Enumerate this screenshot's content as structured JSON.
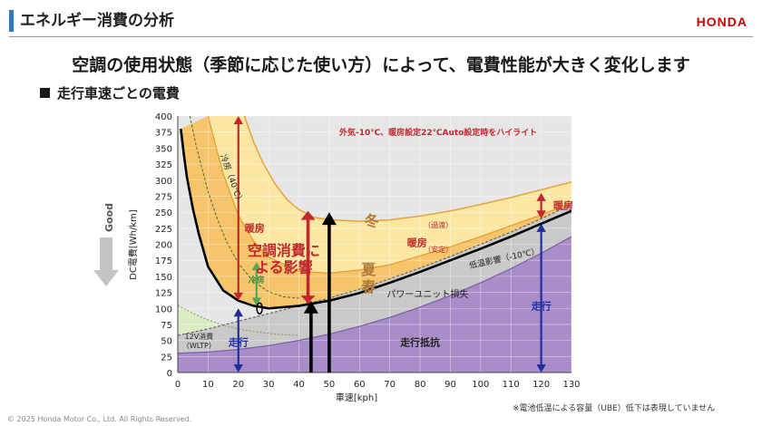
{
  "header": {
    "title": "エネルギー消費の分析",
    "brand": "HONDA",
    "headline": "空調の使用状態（季節に応じた使い方）によって、電費性能が大きく変化します",
    "section": "走行車速ごとの電費"
  },
  "footer": {
    "copyright": "© 2025 Honda Motor Co., Ltd. All Rights Reserved.",
    "footnote": "※電池低温による容量（UBE）低下は表現していません"
  },
  "colors": {
    "purple": "#a98dc9",
    "gray": "#c9c9c9",
    "orange": "#f6c46a",
    "yellow": "#fbe7a3",
    "green": "#d9ecc4",
    "red": "#c1272d",
    "blue": "#1f2e9c",
    "accent": "#2b79c2"
  },
  "chart_data": {
    "type": "area",
    "xlabel": "車速[kph]",
    "ylabel": "DC電費[Wh/km]",
    "xlim": [
      0,
      130
    ],
    "ylim": [
      0,
      400
    ],
    "xticks": [
      0,
      10,
      20,
      30,
      40,
      50,
      60,
      70,
      80,
      90,
      100,
      110,
      120,
      130
    ],
    "yticks": [
      0,
      25,
      50,
      75,
      100,
      125,
      150,
      175,
      200,
      225,
      250,
      275,
      300,
      325,
      350,
      375,
      400
    ],
    "good_label": "Good",
    "series": [
      {
        "name": "走行抵抗",
        "x": [
          0,
          10,
          20,
          30,
          40,
          50,
          60,
          70,
          80,
          90,
          100,
          110,
          120,
          130
        ],
        "values": [
          30,
          32,
          36,
          42,
          50,
          60,
          72,
          86,
          102,
          120,
          140,
          162,
          186,
          212
        ]
      },
      {
        "name": "パワーユニット損失",
        "x": [
          0,
          10,
          20,
          30,
          40,
          50,
          60,
          70,
          80,
          90,
          100,
          110,
          120,
          130
        ],
        "values": [
          58,
          68,
          80,
          92,
          104,
          116,
          130,
          146,
          163,
          181,
          200,
          219,
          240,
          262
        ]
      },
      {
        "name": "低温影響（-10℃）",
        "x": [
          1,
          2,
          3,
          5,
          7,
          10,
          15,
          20,
          25,
          30,
          40,
          50,
          60,
          70,
          80,
          90,
          100,
          110,
          120,
          130
        ],
        "values": [
          380,
          340,
          305,
          255,
          215,
          165,
          128,
          112,
          104,
          100,
          104,
          112,
          124,
          140,
          157,
          175,
          193,
          212,
          232,
          252
        ]
      },
      {
        "name": "冷房（40℃）",
        "x": [
          4,
          6,
          8,
          10,
          13,
          16,
          20,
          25,
          30,
          35,
          40
        ],
        "values": [
          400,
          355,
          318,
          282,
          240,
          205,
          170,
          142,
          126,
          118,
          116
        ]
      },
      {
        "name": "夏・春 12V",
        "x": [
          0,
          5,
          10,
          15,
          20,
          25,
          30,
          35,
          40
        ],
        "values": [
          105,
          92,
          82,
          74,
          68,
          64,
          61,
          59,
          58
        ]
      },
      {
        "name": "暖房（安定）",
        "x": [
          10,
          13,
          15,
          20,
          25,
          30,
          40,
          50,
          60,
          70,
          80,
          90,
          100,
          110,
          120,
          130
        ],
        "values": [
          400,
          345,
          310,
          245,
          205,
          180,
          158,
          155,
          160,
          168,
          182,
          196,
          212,
          229,
          246,
          264
        ]
      },
      {
        "name": "暖房（過渡）",
        "x": [
          22,
          25,
          28,
          32,
          36,
          40,
          45,
          50,
          60,
          70,
          80,
          90,
          100,
          110,
          120,
          130
        ],
        "values": [
          400,
          360,
          328,
          295,
          270,
          254,
          242,
          238,
          236,
          238,
          244,
          252,
          262,
          273,
          285,
          297
        ]
      }
    ],
    "annotations": {
      "highlight": "外気-10℃、暖房設定22℃Auto設定時をハイライト",
      "cooling": "冷房（40℃）",
      "heating": "暖房",
      "heating_right": "暖房",
      "transient": "（過渡）",
      "stable": "（安定）",
      "winter": "冬",
      "summer": "夏",
      "spring": "春",
      "lowtemp": "低温影響（-10℃）",
      "powerunit": "パワーユニット損失",
      "resistance": "走行抵抗",
      "cooling_short": "冷房",
      "aircon_line1": "空調消費に",
      "aircon_line2": "よる影響",
      "v12_line1": "12V消費",
      "v12_line2": "（WLTP）",
      "drive_left": "走行",
      "drive_right": "走行"
    }
  }
}
